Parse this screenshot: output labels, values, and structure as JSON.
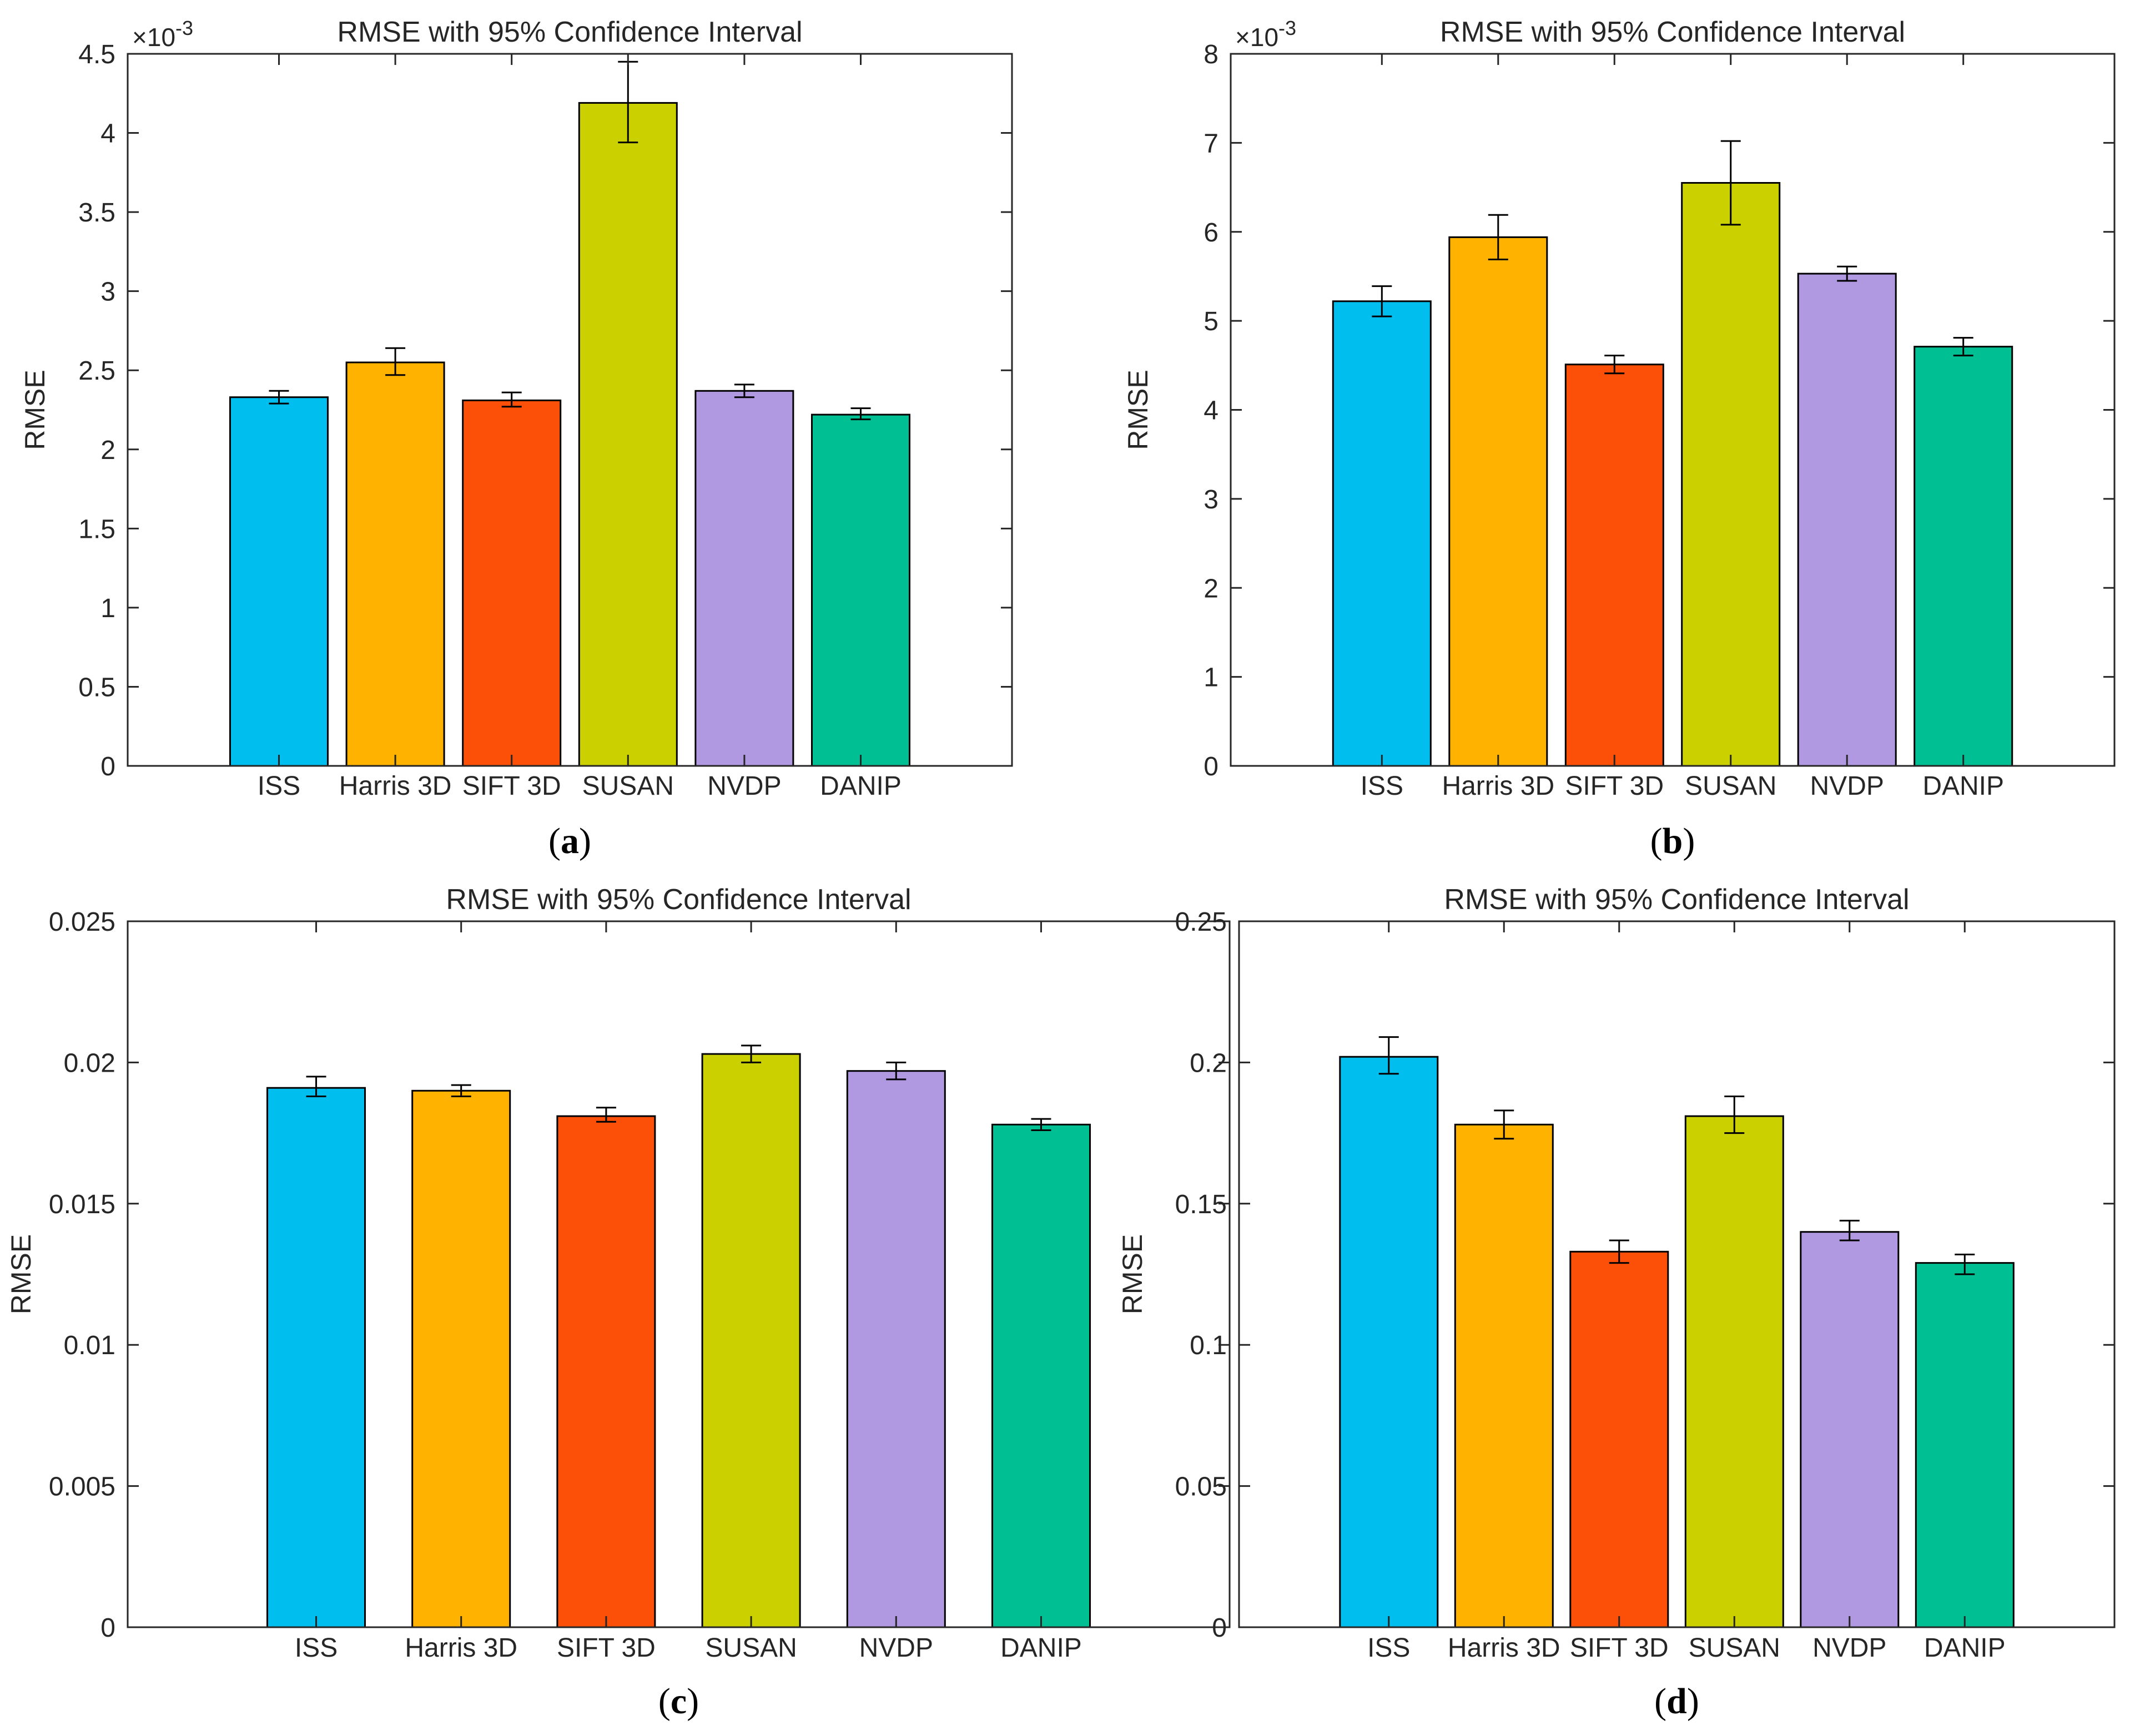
{
  "chart_data": [
    {
      "type": "bar",
      "panel_label": "a",
      "title": "RMSE with 95% Confidence Interval",
      "xlabel": "",
      "ylabel": "RMSE",
      "exponent_label": "×10",
      "exponent_power": "-3",
      "categories": [
        "ISS",
        "Harris 3D",
        "SIFT 3D",
        "SUSAN",
        "NVDP",
        "DANIP"
      ],
      "values": [
        2.33,
        2.55,
        2.31,
        4.19,
        2.37,
        2.22
      ],
      "error_low": [
        2.29,
        2.47,
        2.27,
        3.94,
        2.33,
        2.19
      ],
      "error_high": [
        2.37,
        2.64,
        2.36,
        4.45,
        2.41,
        2.26
      ],
      "ylim": [
        0,
        4.5
      ],
      "yticks": [
        "0",
        "0.5",
        "1",
        "1.5",
        "2",
        "2.5",
        "3",
        "3.5",
        "4",
        "4.5"
      ],
      "grid": false,
      "legend": "none"
    },
    {
      "type": "bar",
      "panel_label": "b",
      "title": "RMSE with 95% Confidence Interval",
      "xlabel": "",
      "ylabel": "RMSE",
      "exponent_label": "×10",
      "exponent_power": "-3",
      "categories": [
        "ISS",
        "Harris 3D",
        "SIFT 3D",
        "SUSAN",
        "NVDP",
        "DANIP"
      ],
      "values": [
        5.22,
        5.94,
        4.51,
        6.55,
        5.53,
        4.71
      ],
      "error_low": [
        5.05,
        5.69,
        4.41,
        6.08,
        5.45,
        4.61
      ],
      "error_high": [
        5.39,
        6.19,
        4.61,
        7.02,
        5.61,
        4.81
      ],
      "ylim": [
        0,
        8
      ],
      "yticks": [
        "0",
        "1",
        "2",
        "3",
        "4",
        "5",
        "6",
        "7",
        "8"
      ],
      "grid": false,
      "legend": "none"
    },
    {
      "type": "bar",
      "panel_label": "c",
      "title": "RMSE with 95% Confidence Interval",
      "xlabel": "",
      "ylabel": "RMSE",
      "exponent_label": "",
      "exponent_power": "",
      "categories": [
        "ISS",
        "Harris 3D",
        "SIFT 3D",
        "SUSAN",
        "NVDP",
        "DANIP"
      ],
      "values": [
        0.0191,
        0.019,
        0.0181,
        0.0203,
        0.0197,
        0.0178
      ],
      "error_low": [
        0.0188,
        0.0188,
        0.0179,
        0.02,
        0.0194,
        0.0176
      ],
      "error_high": [
        0.0195,
        0.0192,
        0.0184,
        0.0206,
        0.02,
        0.018
      ],
      "ylim": [
        0,
        0.025
      ],
      "yticks": [
        "0",
        "0.005",
        "0.01",
        "0.015",
        "0.02",
        "0.025"
      ],
      "grid": false,
      "legend": "none"
    },
    {
      "type": "bar",
      "panel_label": "d",
      "title": "RMSE with 95% Confidence Interval",
      "xlabel": "",
      "ylabel": "RMSE",
      "exponent_label": "",
      "exponent_power": "",
      "categories": [
        "ISS",
        "Harris 3D",
        "SIFT 3D",
        "SUSAN",
        "NVDP",
        "DANIP"
      ],
      "values": [
        0.202,
        0.178,
        0.133,
        0.181,
        0.14,
        0.129
      ],
      "error_low": [
        0.196,
        0.173,
        0.129,
        0.175,
        0.137,
        0.125
      ],
      "error_high": [
        0.209,
        0.183,
        0.137,
        0.188,
        0.144,
        0.132
      ],
      "ylim": [
        0,
        0.25
      ],
      "yticks": [
        "0",
        "0.05",
        "0.1",
        "0.15",
        "0.2",
        "0.25"
      ],
      "grid": false,
      "legend": "none"
    }
  ],
  "colors": {
    "bars": [
      "#00bfef",
      "#ffb200",
      "#fc5008",
      "#cbd100",
      "#b199e2",
      "#00bf93"
    ],
    "axis": "#262626",
    "edge": "#000000",
    "background": "#ffffff"
  }
}
